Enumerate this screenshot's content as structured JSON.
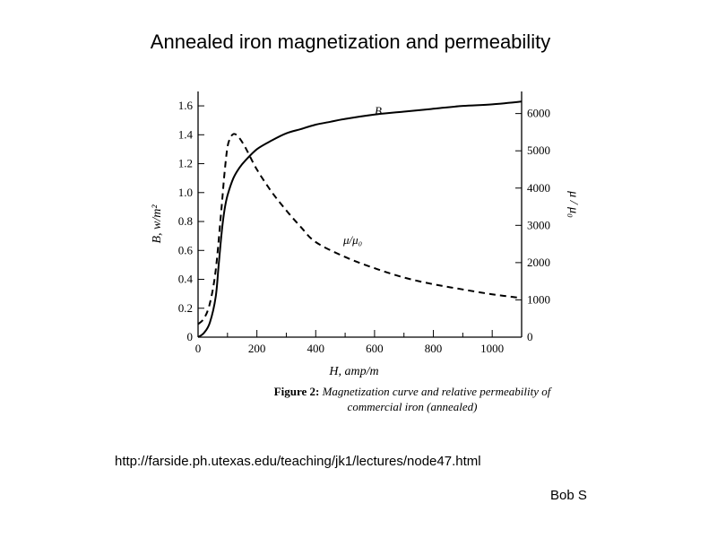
{
  "slide": {
    "title": "Annealed iron magnetization and permeability",
    "url": "http://farside.ph.utexas.edu/teaching/jk1/lectures/node47.html",
    "author": "Bob S"
  },
  "figure": {
    "caption_prefix": "Figure 2:",
    "caption_text": "Magnetization curve and relative permeability of commercial iron (annealed)"
  },
  "chart_data": {
    "type": "line",
    "title": "",
    "xlabel": "H, amp/m",
    "xlabel_symbol": "H",
    "xlabel_unit": ", amp/m",
    "ylabel": "B, w/m²",
    "ylabel_symbol": "B",
    "ylabel_unit": ", w/m²",
    "y2label": "μ / μ₀",
    "xlim": [
      0,
      1100
    ],
    "ylim": [
      0,
      1.65
    ],
    "y2lim": [
      0,
      6400
    ],
    "xticks": [
      0,
      200,
      400,
      600,
      800,
      1000
    ],
    "xtick_labels": [
      "0",
      "200",
      "400",
      "600",
      "800",
      "1000"
    ],
    "yticks": [
      0,
      0.2,
      0.4,
      0.6,
      0.8,
      1.0,
      1.2,
      1.4,
      1.6
    ],
    "ytick_labels": [
      "0",
      "0.2",
      "0.4",
      "0.6",
      "0.8",
      "1.0",
      "1.2",
      "1.4",
      "1.6"
    ],
    "y2ticks": [
      0,
      1000,
      2000,
      3000,
      4000,
      5000,
      6000
    ],
    "y2tick_labels": [
      "0",
      "1000",
      "2000",
      "3000",
      "4000",
      "5000",
      "6000"
    ],
    "grid": false,
    "series": [
      {
        "name": "B",
        "axis": "left",
        "style": "solid",
        "color": "#000000",
        "x": [
          0,
          20,
          40,
          60,
          70,
          80,
          90,
          100,
          120,
          140,
          160,
          200,
          250,
          300,
          350,
          400,
          450,
          500,
          600,
          700,
          800,
          900,
          1000,
          1100
        ],
        "y": [
          0,
          0.03,
          0.1,
          0.28,
          0.5,
          0.72,
          0.88,
          0.98,
          1.1,
          1.17,
          1.22,
          1.3,
          1.36,
          1.41,
          1.44,
          1.47,
          1.49,
          1.51,
          1.54,
          1.56,
          1.58,
          1.6,
          1.61,
          1.63
        ]
      },
      {
        "name": "μ/μ₀",
        "axis": "right",
        "style": "dashed",
        "color": "#000000",
        "x": [
          0,
          20,
          40,
          60,
          80,
          90,
          100,
          110,
          120,
          130,
          140,
          160,
          200,
          250,
          300,
          350,
          400,
          500,
          600,
          700,
          800,
          900,
          1000,
          1100
        ],
        "y": [
          350,
          500,
          900,
          1800,
          3500,
          4400,
          5100,
          5350,
          5450,
          5430,
          5350,
          5100,
          4500,
          3900,
          3400,
          2950,
          2550,
          2150,
          1850,
          1600,
          1420,
          1280,
          1150,
          1050
        ]
      }
    ]
  }
}
